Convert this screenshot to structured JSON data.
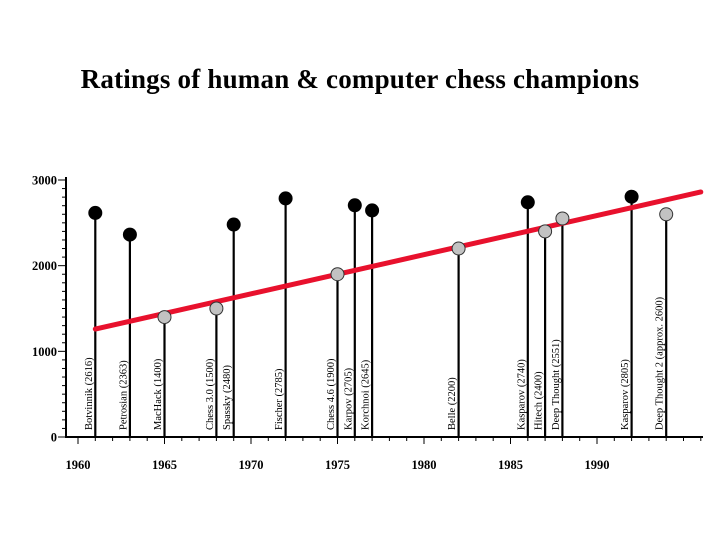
{
  "title": "Ratings of human & computer chess champions",
  "chart_data": {
    "type": "scatter",
    "subtype": "lollipop",
    "title": "Ratings of human & computer chess champions",
    "xlabel": "",
    "ylabel": "",
    "grid": false,
    "legend": false,
    "x_axis": {
      "min": 1959.3,
      "max": 1996,
      "tick_years": [
        1960,
        1965,
        1970,
        1975,
        1980,
        1985,
        1990
      ],
      "tick_labels": [
        "1960",
        "1965",
        "1970",
        "1975",
        "1980",
        "1985",
        "1990"
      ],
      "minor_tick_interval": 1
    },
    "y_axis": {
      "min": 0,
      "max": 3000,
      "tick_values": [
        0,
        1000,
        2000,
        3000
      ],
      "tick_labels": [
        "0",
        "1000",
        "2000",
        "3000"
      ],
      "minor_tick_interval": 100
    },
    "points": [
      {
        "label": "Botvinnik (2616)",
        "name": "Botvinnik",
        "year": 1961,
        "rating": 2616,
        "category": "human"
      },
      {
        "label": "Petrosian (2363)",
        "name": "Petrosian",
        "year": 1963,
        "rating": 2363,
        "category": "human"
      },
      {
        "label": "MacHack (1400)",
        "name": "MacHack",
        "year": 1965,
        "rating": 1400,
        "category": "computer"
      },
      {
        "label": "Chess 3.0 (1500)",
        "name": "Chess 3.0",
        "year": 1968,
        "rating": 1500,
        "category": "computer"
      },
      {
        "label": "Spassky (2480)",
        "name": "Spassky",
        "year": 1969,
        "rating": 2480,
        "category": "human"
      },
      {
        "label": "Fischer (2785)",
        "name": "Fischer",
        "year": 1972,
        "rating": 2785,
        "category": "human"
      },
      {
        "label": "Chess 4.6 (1900)",
        "name": "Chess 4.6",
        "year": 1975,
        "rating": 1900,
        "category": "computer"
      },
      {
        "label": "Karpov (2705)",
        "name": "Karpov",
        "year": 1976,
        "rating": 2705,
        "category": "human"
      },
      {
        "label": "Korchnoi (2645)",
        "name": "Korchnoi",
        "year": 1977,
        "rating": 2645,
        "category": "human"
      },
      {
        "label": "Belle (2200)",
        "name": "Belle",
        "year": 1982,
        "rating": 2200,
        "category": "computer"
      },
      {
        "label": "Kasparov (2740)",
        "name": "Kasparov",
        "year": 1986,
        "rating": 2740,
        "category": "human"
      },
      {
        "label": "Hitech (2400)",
        "name": "Hitech",
        "year": 1987,
        "rating": 2400,
        "category": "computer"
      },
      {
        "label": "Deep Thought (2551)",
        "name": "Deep Thought",
        "year": 1988,
        "rating": 2551,
        "category": "computer"
      },
      {
        "label": "Kasparov (2805)",
        "name": "Kasparov 2",
        "year": 1992,
        "rating": 2805,
        "category": "human"
      },
      {
        "label": "Deep Thought 2 (approx. 2600)",
        "name": "Deep Thought 2",
        "year": 1994,
        "rating": 2600,
        "category": "computer"
      }
    ],
    "trend_line": {
      "x1_year": 1961,
      "y1_rating": 1260,
      "x2_year": 1996,
      "y2_rating": 2860,
      "color": "#e8112d"
    },
    "colors": {
      "human_dot": "#000000",
      "computer_dot": "#c2c2c2",
      "computer_dot_edge": "#333333",
      "stem": "#000000",
      "axis": "#000000",
      "trend": "#e8112d",
      "background": "#ffffff"
    }
  }
}
